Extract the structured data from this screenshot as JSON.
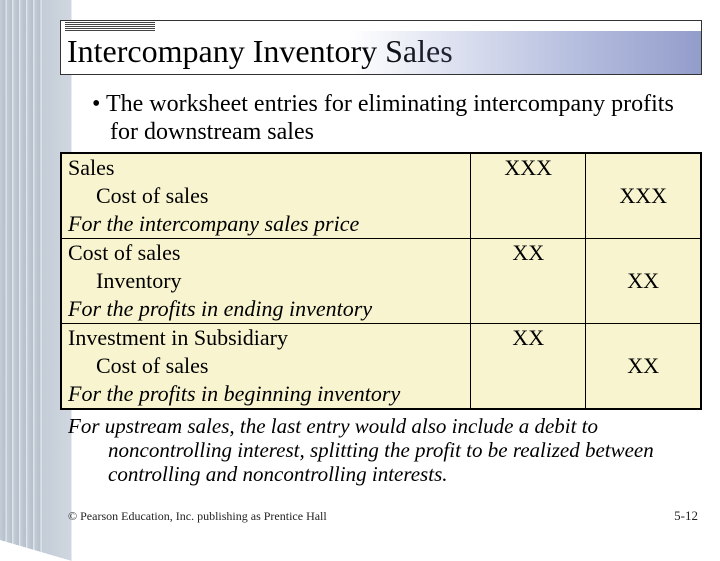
{
  "title": "Intercompany Inventory Sales",
  "intro": "The worksheet entries for eliminating intercompany profits for downstream sales",
  "table": {
    "background": "#f7f4cf",
    "rows": [
      {
        "desc": "Sales",
        "debit": "XXX",
        "credit": "",
        "indent": false,
        "italic": false,
        "sep": false
      },
      {
        "desc": "Cost of sales",
        "debit": "",
        "credit": "XXX",
        "indent": true,
        "italic": false,
        "sep": false
      },
      {
        "desc": "For the intercompany sales price",
        "debit": "",
        "credit": "",
        "indent": false,
        "italic": true,
        "sep": true
      },
      {
        "desc": "Cost of sales",
        "debit": "XX",
        "credit": "",
        "indent": false,
        "italic": false,
        "sep": false
      },
      {
        "desc": "Inventory",
        "debit": "",
        "credit": "XX",
        "indent": true,
        "italic": false,
        "sep": false
      },
      {
        "desc": "For the profits in ending inventory",
        "debit": "",
        "credit": "",
        "indent": false,
        "italic": true,
        "sep": true
      },
      {
        "desc": "Investment in Subsidiary",
        "debit": "XX",
        "credit": "",
        "indent": false,
        "italic": false,
        "sep": false
      },
      {
        "desc": "Cost of sales",
        "debit": "",
        "credit": "XX",
        "indent": true,
        "italic": false,
        "sep": false
      },
      {
        "desc": "For the profits in beginning inventory",
        "debit": "",
        "credit": "",
        "indent": false,
        "italic": true,
        "sep": false
      }
    ]
  },
  "footer_note": "For upstream sales, the last entry would also include a debit to noncontrolling interest, splitting the profit to be realized between controlling and noncontrolling interests.",
  "copyright": "© Pearson Education, Inc. publishing as Prentice Hall",
  "pagenum": "5-12"
}
